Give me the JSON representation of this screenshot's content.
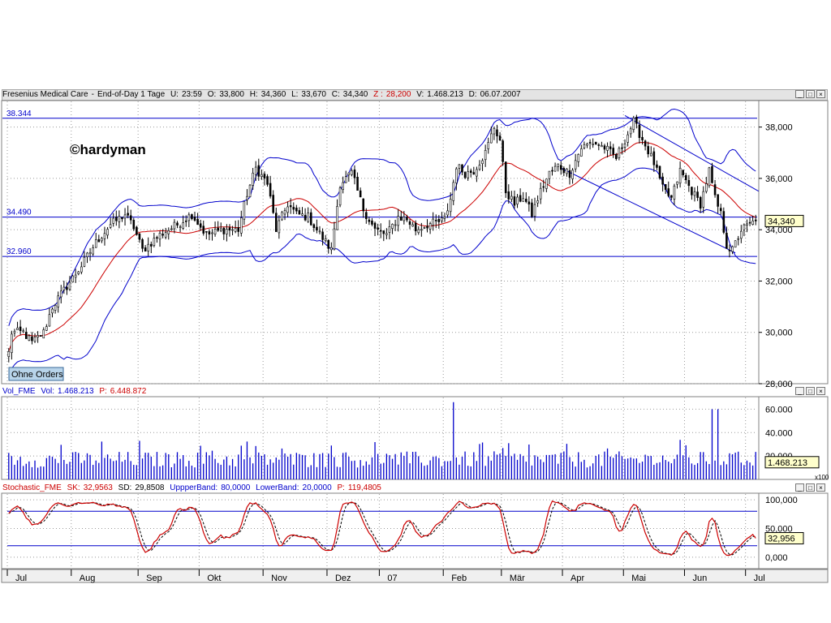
{
  "header": {
    "name": "Fresenius Medical Care",
    "interval": "End-of-Day 1 Tage",
    "u_label": "U:",
    "u_value": "23:59",
    "o_label": "O:",
    "o_value": "33,800",
    "h_label": "H:",
    "h_value": "34,360",
    "l_label": "L:",
    "l_value": "33,670",
    "c_label": "C:",
    "c_value": "34,340",
    "z_label": "Z :",
    "z_value": "28,200",
    "v_label": "V:",
    "v_value": "1.468.213",
    "d_label": "D:",
    "d_value": "06.07.2007"
  },
  "volume_header": {
    "name": "Vol_FME",
    "vol_label": "Vol:",
    "vol_value": "1.468.213",
    "p_label": "P:",
    "p_value": "6.448.872"
  },
  "stoch_header": {
    "name": "Stochastic_FME",
    "sk_label": "SK:",
    "sk_value": "32,9563",
    "sd_label": "SD:",
    "sd_value": "29,8508",
    "ub_label": "UppperBand:",
    "ub_value": "80,0000",
    "lb_label": "LowerBand:",
    "lb_value": "20,0000",
    "extra_value": "119,4805"
  },
  "window_buttons": {
    "minimize": "_",
    "maximize": "□",
    "close": "×"
  },
  "watermark": "©hardyman",
  "orders_button": "Ohne Orders",
  "volume_unit": "x100",
  "colors": {
    "up": "#000000",
    "bollinger": "#0000cc",
    "ma": "#cc0000",
    "volume": "#0000cc",
    "sk": "#cc0000",
    "sd": "#000000",
    "price_box": "#ffffcc"
  },
  "chart_data": [
    {
      "type": "candlestick",
      "title": "Fresenius Medical Care",
      "ylim": [
        28,
        39
      ],
      "y_ticks": [
        "28,000",
        "30,000",
        "32,000",
        "34,000",
        "36,000",
        "38,000"
      ],
      "y_tick_values": [
        28,
        30,
        32,
        34,
        36,
        38
      ],
      "x_months": [
        "Jul",
        "Aug",
        "Sep",
        "Okt",
        "Nov",
        "Dez",
        "07",
        "Feb",
        "Mär",
        "Apr",
        "Mai",
        "Jun",
        "Jul"
      ],
      "n_days": 258,
      "month_starts": [
        0,
        22,
        45,
        66,
        88,
        110,
        128,
        150,
        170,
        191,
        212,
        233,
        254
      ],
      "h_lines": [
        {
          "label": "38.344",
          "value": 38.344
        },
        {
          "label": "34.490",
          "value": 34.49
        },
        {
          "label": "32.960",
          "value": 32.96
        }
      ],
      "trend_lines": [
        {
          "x1": 212,
          "y1": 38.45,
          "x2": 258,
          "y2": 35.5
        },
        {
          "x1": 190,
          "y1": 36.4,
          "x2": 250,
          "y2": 33.1
        }
      ],
      "current_price": "34,340",
      "current_price_value": 34.34,
      "close_keypoints": [
        [
          0,
          29.2
        ],
        [
          1,
          30.0
        ],
        [
          5,
          30.0
        ],
        [
          8,
          29.6
        ],
        [
          12,
          30.0
        ],
        [
          15,
          31.0
        ],
        [
          20,
          31.8
        ],
        [
          25,
          32.6
        ],
        [
          30,
          33.5
        ],
        [
          35,
          34.2
        ],
        [
          40,
          34.6
        ],
        [
          43,
          34.1
        ],
        [
          46,
          33.2
        ],
        [
          52,
          33.8
        ],
        [
          58,
          34.2
        ],
        [
          63,
          34.6
        ],
        [
          68,
          33.8
        ],
        [
          74,
          34.0
        ],
        [
          79,
          34.0
        ],
        [
          82,
          35.4
        ],
        [
          85,
          36.4
        ],
        [
          89,
          35.8
        ],
        [
          92,
          34.0
        ],
        [
          96,
          35.0
        ],
        [
          99,
          34.6
        ],
        [
          103,
          34.5
        ],
        [
          106,
          34.0
        ],
        [
          111,
          33.2
        ],
        [
          114,
          35.8
        ],
        [
          118,
          36.2
        ],
        [
          122,
          34.8
        ],
        [
          126,
          34.0
        ],
        [
          130,
          33.8
        ],
        [
          134,
          34.5
        ],
        [
          137,
          34.4
        ],
        [
          140,
          34.0
        ],
        [
          144,
          34.2
        ],
        [
          148,
          34.3
        ],
        [
          150,
          34.4
        ],
        [
          152,
          35.2
        ],
        [
          154,
          36.5
        ],
        [
          157,
          36.2
        ],
        [
          160,
          36.3
        ],
        [
          164,
          37.0
        ],
        [
          167,
          38.0
        ],
        [
          169,
          37.5
        ],
        [
          171,
          35.5
        ],
        [
          174,
          35.0
        ],
        [
          177,
          35.3
        ],
        [
          180,
          34.6
        ],
        [
          183,
          35.5
        ],
        [
          186,
          36.2
        ],
        [
          189,
          36.5
        ],
        [
          193,
          36.2
        ],
        [
          197,
          37.2
        ],
        [
          201,
          37.4
        ],
        [
          205,
          37.2
        ],
        [
          209,
          36.8
        ],
        [
          212,
          37.5
        ],
        [
          215,
          38.2
        ],
        [
          219,
          37.3
        ],
        [
          222,
          36.6
        ],
        [
          225,
          35.6
        ],
        [
          228,
          35.2
        ],
        [
          231,
          36.3
        ],
        [
          235,
          35.5
        ],
        [
          238,
          35.0
        ],
        [
          241,
          36.3
        ],
        [
          243,
          35.2
        ],
        [
          245,
          34.6
        ],
        [
          247,
          33.4
        ],
        [
          249,
          33.2
        ],
        [
          252,
          34.0
        ],
        [
          255,
          34.2
        ],
        [
          257,
          34.34
        ]
      ],
      "volume_ylim": [
        0,
        70
      ],
      "volume_ticks": [
        "20.000",
        "40.000",
        "60.000"
      ],
      "volume_tick_values": [
        20,
        40,
        60
      ],
      "volume_spikes": [
        {
          "day": 153,
          "value": 66
        },
        {
          "day": 242,
          "value": 60
        },
        {
          "day": 244,
          "value": 60
        }
      ],
      "volume_current": "1.468.213",
      "volume_current_value": 14.7,
      "stoch_ylim": [
        -20,
        110
      ],
      "stoch_ticks": [
        "0,000",
        "50,000",
        "100,000"
      ],
      "stoch_tick_values": [
        0,
        50,
        100
      ],
      "stoch_bands": [
        80,
        20
      ],
      "stoch_current": "32,956",
      "stoch_current_value": 32.956
    }
  ]
}
